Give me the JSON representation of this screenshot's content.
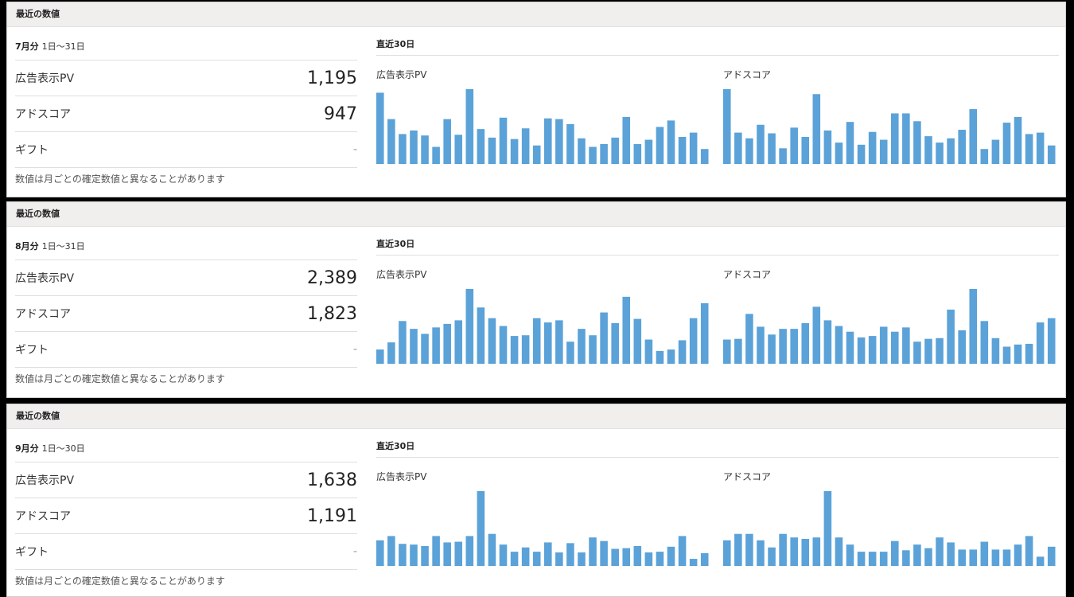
{
  "colors": {
    "bar": "#5ba2d8",
    "header_bg": "#f1efee"
  },
  "panels": [
    {
      "header": "最近の数値",
      "period_month": "7月分",
      "period_range": "1日〜31日",
      "metrics": [
        {
          "label": "広告表示PV",
          "value": "1,195"
        },
        {
          "label": "アドスコア",
          "value": "947"
        },
        {
          "label": "ギフト",
          "value": "-"
        }
      ],
      "note": "数値は月ごとの確定数値と異なることがあります",
      "recent_title": "直近30日",
      "charts": [
        {
          "label": "広告表示PV",
          "values": [
            100,
            63,
            42,
            47,
            40,
            24,
            63,
            41,
            105,
            49,
            37,
            65,
            35,
            50,
            26,
            64,
            63,
            56,
            36,
            24,
            28,
            37,
            66,
            28,
            34,
            52,
            61,
            38,
            44,
            21
          ]
        },
        {
          "label": "アドスコア",
          "values": [
            105,
            44,
            36,
            55,
            43,
            22,
            51,
            38,
            98,
            47,
            30,
            59,
            27,
            45,
            34,
            71,
            71,
            60,
            39,
            30,
            36,
            48,
            77,
            21,
            34,
            58,
            66,
            42,
            44,
            26
          ]
        }
      ]
    },
    {
      "header": "最近の数値",
      "period_month": "8月分",
      "period_range": "1日〜31日",
      "metrics": [
        {
          "label": "広告表示PV",
          "value": "2,389"
        },
        {
          "label": "アドスコア",
          "value": "1,823"
        },
        {
          "label": "ギフト",
          "value": "-"
        }
      ],
      "note": "数値は月ごとの確定数値と異なることがあります",
      "recent_title": "直近30日",
      "charts": [
        {
          "label": "広告表示PV",
          "values": [
            20,
            30,
            60,
            49,
            42,
            51,
            56,
            61,
            105,
            79,
            64,
            53,
            39,
            40,
            64,
            58,
            61,
            31,
            49,
            40,
            72,
            57,
            94,
            63,
            34,
            18,
            20,
            33,
            64,
            85
          ]
        },
        {
          "label": "アドスコア",
          "values": [
            34,
            35,
            70,
            52,
            41,
            49,
            49,
            57,
            80,
            61,
            53,
            45,
            37,
            39,
            52,
            45,
            51,
            31,
            35,
            36,
            76,
            47,
            105,
            60,
            36,
            24,
            27,
            28,
            58,
            64
          ]
        }
      ]
    },
    {
      "header": "最近の数値",
      "period_month": "9月分",
      "period_range": "1日〜30日",
      "metrics": [
        {
          "label": "広告表示PV",
          "value": "1,638"
        },
        {
          "label": "アドスコア",
          "value": "1,191"
        },
        {
          "label": "ギフト",
          "value": "-"
        }
      ],
      "note": "数値は月ごとの確定数値と異なることがあります",
      "recent_title": "直近30日",
      "charts": [
        {
          "label": "広告表示PV",
          "values": [
            36,
            42,
            31,
            30,
            28,
            42,
            33,
            34,
            42,
            105,
            45,
            30,
            20,
            26,
            20,
            33,
            19,
            32,
            19,
            40,
            35,
            24,
            25,
            28,
            19,
            20,
            27,
            42,
            10,
            18
          ]
        },
        {
          "label": "アドスコア",
          "values": [
            36,
            45,
            45,
            36,
            26,
            45,
            40,
            38,
            40,
            105,
            40,
            30,
            20,
            20,
            20,
            35,
            22,
            30,
            25,
            40,
            33,
            23,
            23,
            34,
            23,
            23,
            30,
            42,
            13,
            27
          ]
        }
      ]
    }
  ]
}
